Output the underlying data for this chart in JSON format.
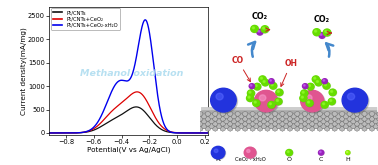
{
  "xlabel": "Potential(V vs Ag/AgCl)",
  "ylabel": "Current density(mA/mg)",
  "xlim": [
    -0.92,
    0.22
  ],
  "ylim": [
    -50,
    2700
  ],
  "xticks": [
    -0.8,
    -0.6,
    -0.4,
    -0.2,
    0.0,
    0.2
  ],
  "yticks": [
    0,
    500,
    1000,
    1500,
    2000,
    2500
  ],
  "legend_labels": [
    "Pt/CNTs",
    "Pt/CNTs+CeO₂",
    "Pt/CNTs+CeO₂·xH₂O"
  ],
  "line_colors": [
    "#111111",
    "#dd0000",
    "#0000ee"
  ],
  "watermark_text": "Methanol oxidation",
  "watermark_color": "#b0ddf0",
  "pt_color": "#2233dd",
  "pt_highlight": "#5566ff",
  "ceo2_color": "#e05590",
  "ceo2_highlight": "#f899cc",
  "o_color": "#66dd00",
  "c_color": "#9922bb",
  "h_color": "#88ee00",
  "cnt_light": "#cccccc",
  "cnt_dark": "#888888",
  "cnt_darker": "#555555",
  "arrow_color": "#4488cc",
  "co_color": "#cc2222",
  "oh_color": "#cc2222",
  "co2_color": "#000000"
}
